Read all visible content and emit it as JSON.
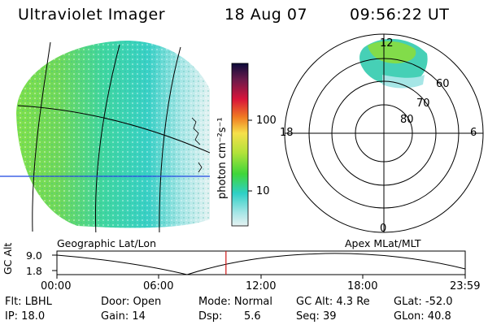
{
  "header": {
    "title": "Ultraviolet Imager",
    "date": "18 Aug 07",
    "time": "09:56:22 UT"
  },
  "colorbar": {
    "unit_label": "photon cm⁻²s⁻¹",
    "ticks": [
      "100",
      "10"
    ]
  },
  "polar": {
    "mlt_labels": [
      "12",
      "18",
      "6",
      "0"
    ],
    "lat_labels": [
      "60",
      "70",
      "80"
    ]
  },
  "map_labels": {
    "left": "Geographic Lat/Lon",
    "right": "Apex MLat/MLT"
  },
  "alt_plot": {
    "axis_label": "GC Alt",
    "y_ticks": [
      "9.0",
      "1.8"
    ],
    "x_ticks": [
      "00:00",
      "06:00",
      "12:00",
      "18:00",
      "23:59"
    ],
    "current_time_fraction": 0.414
  },
  "status": {
    "filter": "Flt: LBHL",
    "ip": "IP: 18.0",
    "door": "Door: Open",
    "gain": "Gain: 14",
    "mode": "Mode: Normal",
    "dsp_label": "Dsp:",
    "dsp_value": "5.6",
    "gc_alt": "GC Alt: 4.3 Re",
    "seq": "Seq: 39",
    "glat": "GLat: -52.0",
    "glon": "GLon: 40.8"
  },
  "colors": {
    "grid": "#000000",
    "equator_line": "#1a44e0",
    "time_marker": "#d01818"
  }
}
